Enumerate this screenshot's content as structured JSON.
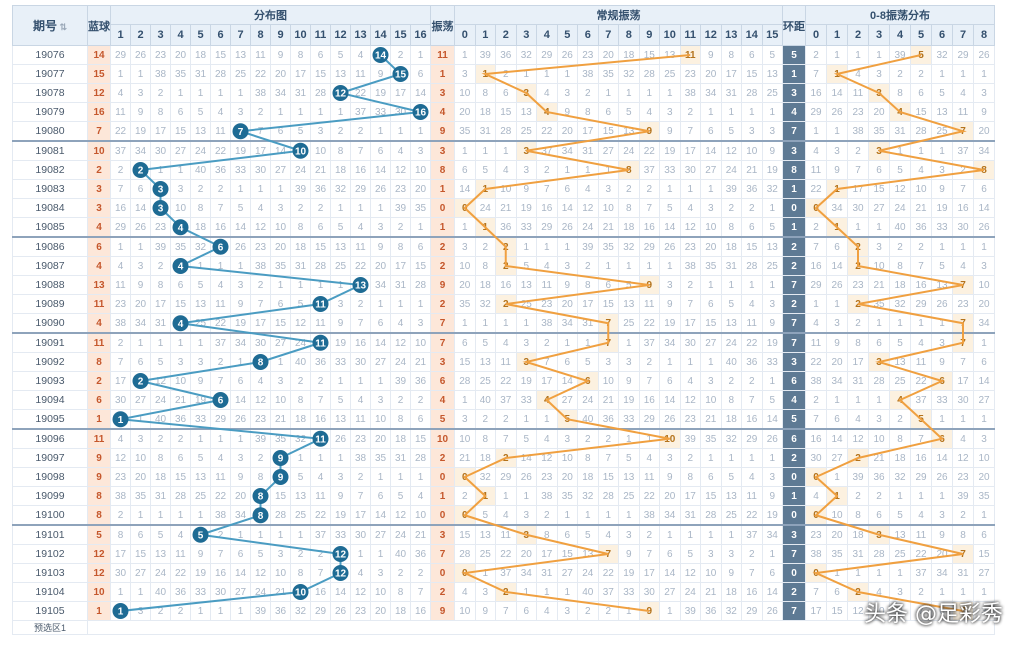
{
  "header": {
    "period": "期号",
    "blue": "蓝球",
    "dist": "分布图",
    "swing": "振荡",
    "regular": "常规振荡",
    "ring": "环距",
    "zero8": "0-8振荡分布"
  },
  "dist_nums": [
    "1",
    "2",
    "3",
    "4",
    "5",
    "6",
    "7",
    "8",
    "9",
    "10",
    "11",
    "12",
    "13",
    "14",
    "15",
    "16"
  ],
  "reg_nums": [
    "0",
    "1",
    "2",
    "3",
    "4",
    "5",
    "6",
    "7",
    "8",
    "9",
    "10",
    "11",
    "12",
    "13",
    "14",
    "15"
  ],
  "z8_nums": [
    "0",
    "1",
    "2",
    "3",
    "4",
    "5",
    "6",
    "7",
    "8"
  ],
  "colors": {
    "dist_line": "#4a9cc2",
    "ball": "#1e6b94",
    "swing_line": "#f0a040"
  },
  "rows": [
    {
      "period": "19076",
      "blue": 14,
      "swing": 11,
      "ring": 5
    },
    {
      "period": "19077",
      "blue": 15,
      "swing": 1,
      "ring": 1
    },
    {
      "period": "19078",
      "blue": 12,
      "swing": 3,
      "ring": 3
    },
    {
      "period": "19079",
      "blue": 16,
      "swing": 4,
      "ring": 4
    },
    {
      "period": "19080",
      "blue": 7,
      "swing": 9,
      "ring": 7
    },
    {
      "period": "19081",
      "blue": 10,
      "swing": 3,
      "ring": 3
    },
    {
      "period": "19082",
      "blue": 2,
      "swing": 8,
      "ring": 8
    },
    {
      "period": "19083",
      "blue": 3,
      "swing": 1,
      "ring": 1
    },
    {
      "period": "19084",
      "blue": 3,
      "swing": 0,
      "ring": 0
    },
    {
      "period": "19085",
      "blue": 4,
      "swing": 1,
      "ring": 1
    },
    {
      "period": "19086",
      "blue": 6,
      "swing": 2,
      "ring": 2
    },
    {
      "period": "19087",
      "blue": 4,
      "swing": 2,
      "ring": 2
    },
    {
      "period": "19088",
      "blue": 13,
      "swing": 9,
      "ring": 7
    },
    {
      "period": "19089",
      "blue": 11,
      "swing": 2,
      "ring": 2
    },
    {
      "period": "19090",
      "blue": 4,
      "swing": 7,
      "ring": 7
    },
    {
      "period": "19091",
      "blue": 11,
      "swing": 7,
      "ring": 7
    },
    {
      "period": "19092",
      "blue": 8,
      "swing": 3,
      "ring": 3
    },
    {
      "period": "19093",
      "blue": 2,
      "swing": 6,
      "ring": 6
    },
    {
      "period": "19094",
      "blue": 6,
      "swing": 4,
      "ring": 4
    },
    {
      "period": "19095",
      "blue": 1,
      "swing": 5,
      "ring": 5
    },
    {
      "period": "19096",
      "blue": 11,
      "swing": 10,
      "ring": 6
    },
    {
      "period": "19097",
      "blue": 9,
      "swing": 2,
      "ring": 2
    },
    {
      "period": "19098",
      "blue": 9,
      "swing": 0,
      "ring": 0
    },
    {
      "period": "19099",
      "blue": 8,
      "swing": 1,
      "ring": 1
    },
    {
      "period": "19100",
      "blue": 8,
      "swing": 0,
      "ring": 0
    },
    {
      "period": "19101",
      "blue": 5,
      "swing": 3,
      "ring": 3
    },
    {
      "period": "19102",
      "blue": 12,
      "swing": 7,
      "ring": 7
    },
    {
      "period": "19103",
      "blue": 12,
      "swing": 0,
      "ring": 0
    },
    {
      "period": "19104",
      "blue": 10,
      "swing": 2,
      "ring": 2
    },
    {
      "period": "19105",
      "blue": 1,
      "swing": 9,
      "ring": 7
    }
  ],
  "footer": {
    "label": "预选区1"
  },
  "watermark": "头条 @足彩秀"
}
